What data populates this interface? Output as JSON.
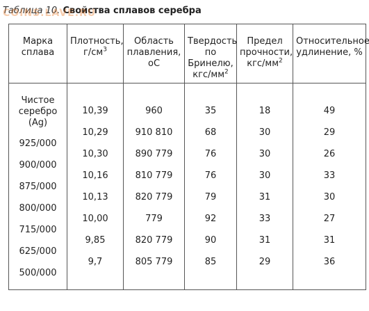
{
  "caption": {
    "number": "Таблица 10.",
    "title": "Свойства сплавов серебра"
  },
  "watermark": "COINS.LAVE.RU",
  "headers": {
    "grade": "Марка сплава",
    "density": "Плотность, г/см",
    "density_sup": "3",
    "melting": "Область плавления,",
    "melting_unit": "оС",
    "hardness": "Твердость по Бринелю, кгс/мм",
    "hardness_sup": "2",
    "strength": "Предел прочности, кгс/мм",
    "strength_sup": "2",
    "elongation": "Относительное удлинение, %"
  },
  "rows": [
    {
      "grade": "Чистое серебро (Ag)",
      "density": "10,39",
      "melting": "960",
      "hardness": "35",
      "strength": "18",
      "elongation": "49"
    },
    {
      "grade": "925/000",
      "density": "10,29",
      "melting": "910 810",
      "hardness": "68",
      "strength": "30",
      "elongation": "29"
    },
    {
      "grade": "900/000",
      "density": "10,30",
      "melting": "890 779",
      "hardness": "76",
      "strength": "30",
      "elongation": "26"
    },
    {
      "grade": "875/000",
      "density": "10,16",
      "melting": "810 779",
      "hardness": "76",
      "strength": "30",
      "elongation": "33"
    },
    {
      "grade": "800/000",
      "density": "10,13",
      "melting": "820 779",
      "hardness": "79",
      "strength": "31",
      "elongation": "30"
    },
    {
      "grade": "715/000",
      "density": "10,00",
      "melting": "779",
      "hardness": "92",
      "strength": "33",
      "elongation": "27"
    },
    {
      "grade": "625/000",
      "density": "9,85",
      "melting": "820 779",
      "hardness": "90",
      "strength": "31",
      "elongation": "31"
    },
    {
      "grade": "500/000",
      "density": "9,7",
      "melting": "805 779",
      "hardness": "85",
      "strength": "29",
      "elongation": "36"
    }
  ]
}
